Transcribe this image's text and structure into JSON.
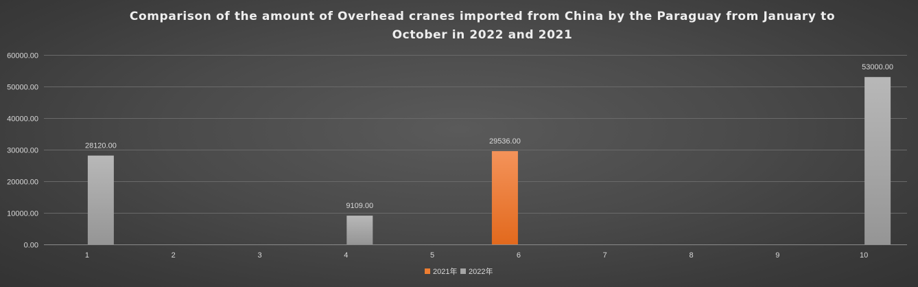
{
  "chart_data": {
    "type": "bar",
    "title_lines": [
      "Comparison of the amount of Overhead cranes imported from China by the Paraguay from January to",
      "October in 2022 and 2021"
    ],
    "categories": [
      "1",
      "2",
      "3",
      "4",
      "5",
      "6",
      "7",
      "8",
      "9",
      "10"
    ],
    "series": [
      {
        "name": "2021年",
        "color": "#ed7d31",
        "values": [
          null,
          null,
          null,
          null,
          null,
          29536.0,
          null,
          null,
          null,
          null
        ]
      },
      {
        "name": "2022年",
        "color": "#a5a5a5",
        "values": [
          28120.0,
          null,
          null,
          9109.0,
          null,
          null,
          null,
          null,
          null,
          53000.0
        ]
      }
    ],
    "ylim": [
      0,
      60000
    ],
    "y_ticks": [
      "0.00",
      "10000.00",
      "20000.00",
      "30000.00",
      "40000.00",
      "50000.00",
      "60000.00"
    ],
    "data_labels": true,
    "grid": true,
    "legend_position": "bottom"
  }
}
